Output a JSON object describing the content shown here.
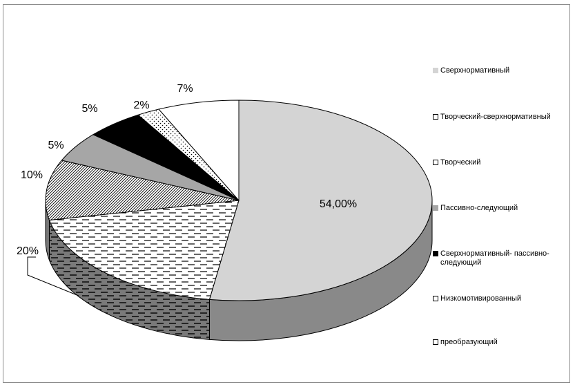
{
  "chart_data": {
    "type": "pie",
    "title": "",
    "categories": [
      "Сверхнормативный",
      "Творческий-сверхнормативный",
      "Творческий",
      "Пассивно-следующий",
      "Сверхнормативный- пассивно-\nследующий",
      "Низкомотивированный",
      "преобразующий"
    ],
    "values": [
      54,
      20,
      10,
      5,
      5,
      2,
      7
    ],
    "data_labels": [
      "54,00%",
      "20%",
      "10%",
      "5%",
      "5%",
      "2%",
      "7%"
    ],
    "legend_position": "right",
    "grid": false,
    "three_d": true
  }
}
